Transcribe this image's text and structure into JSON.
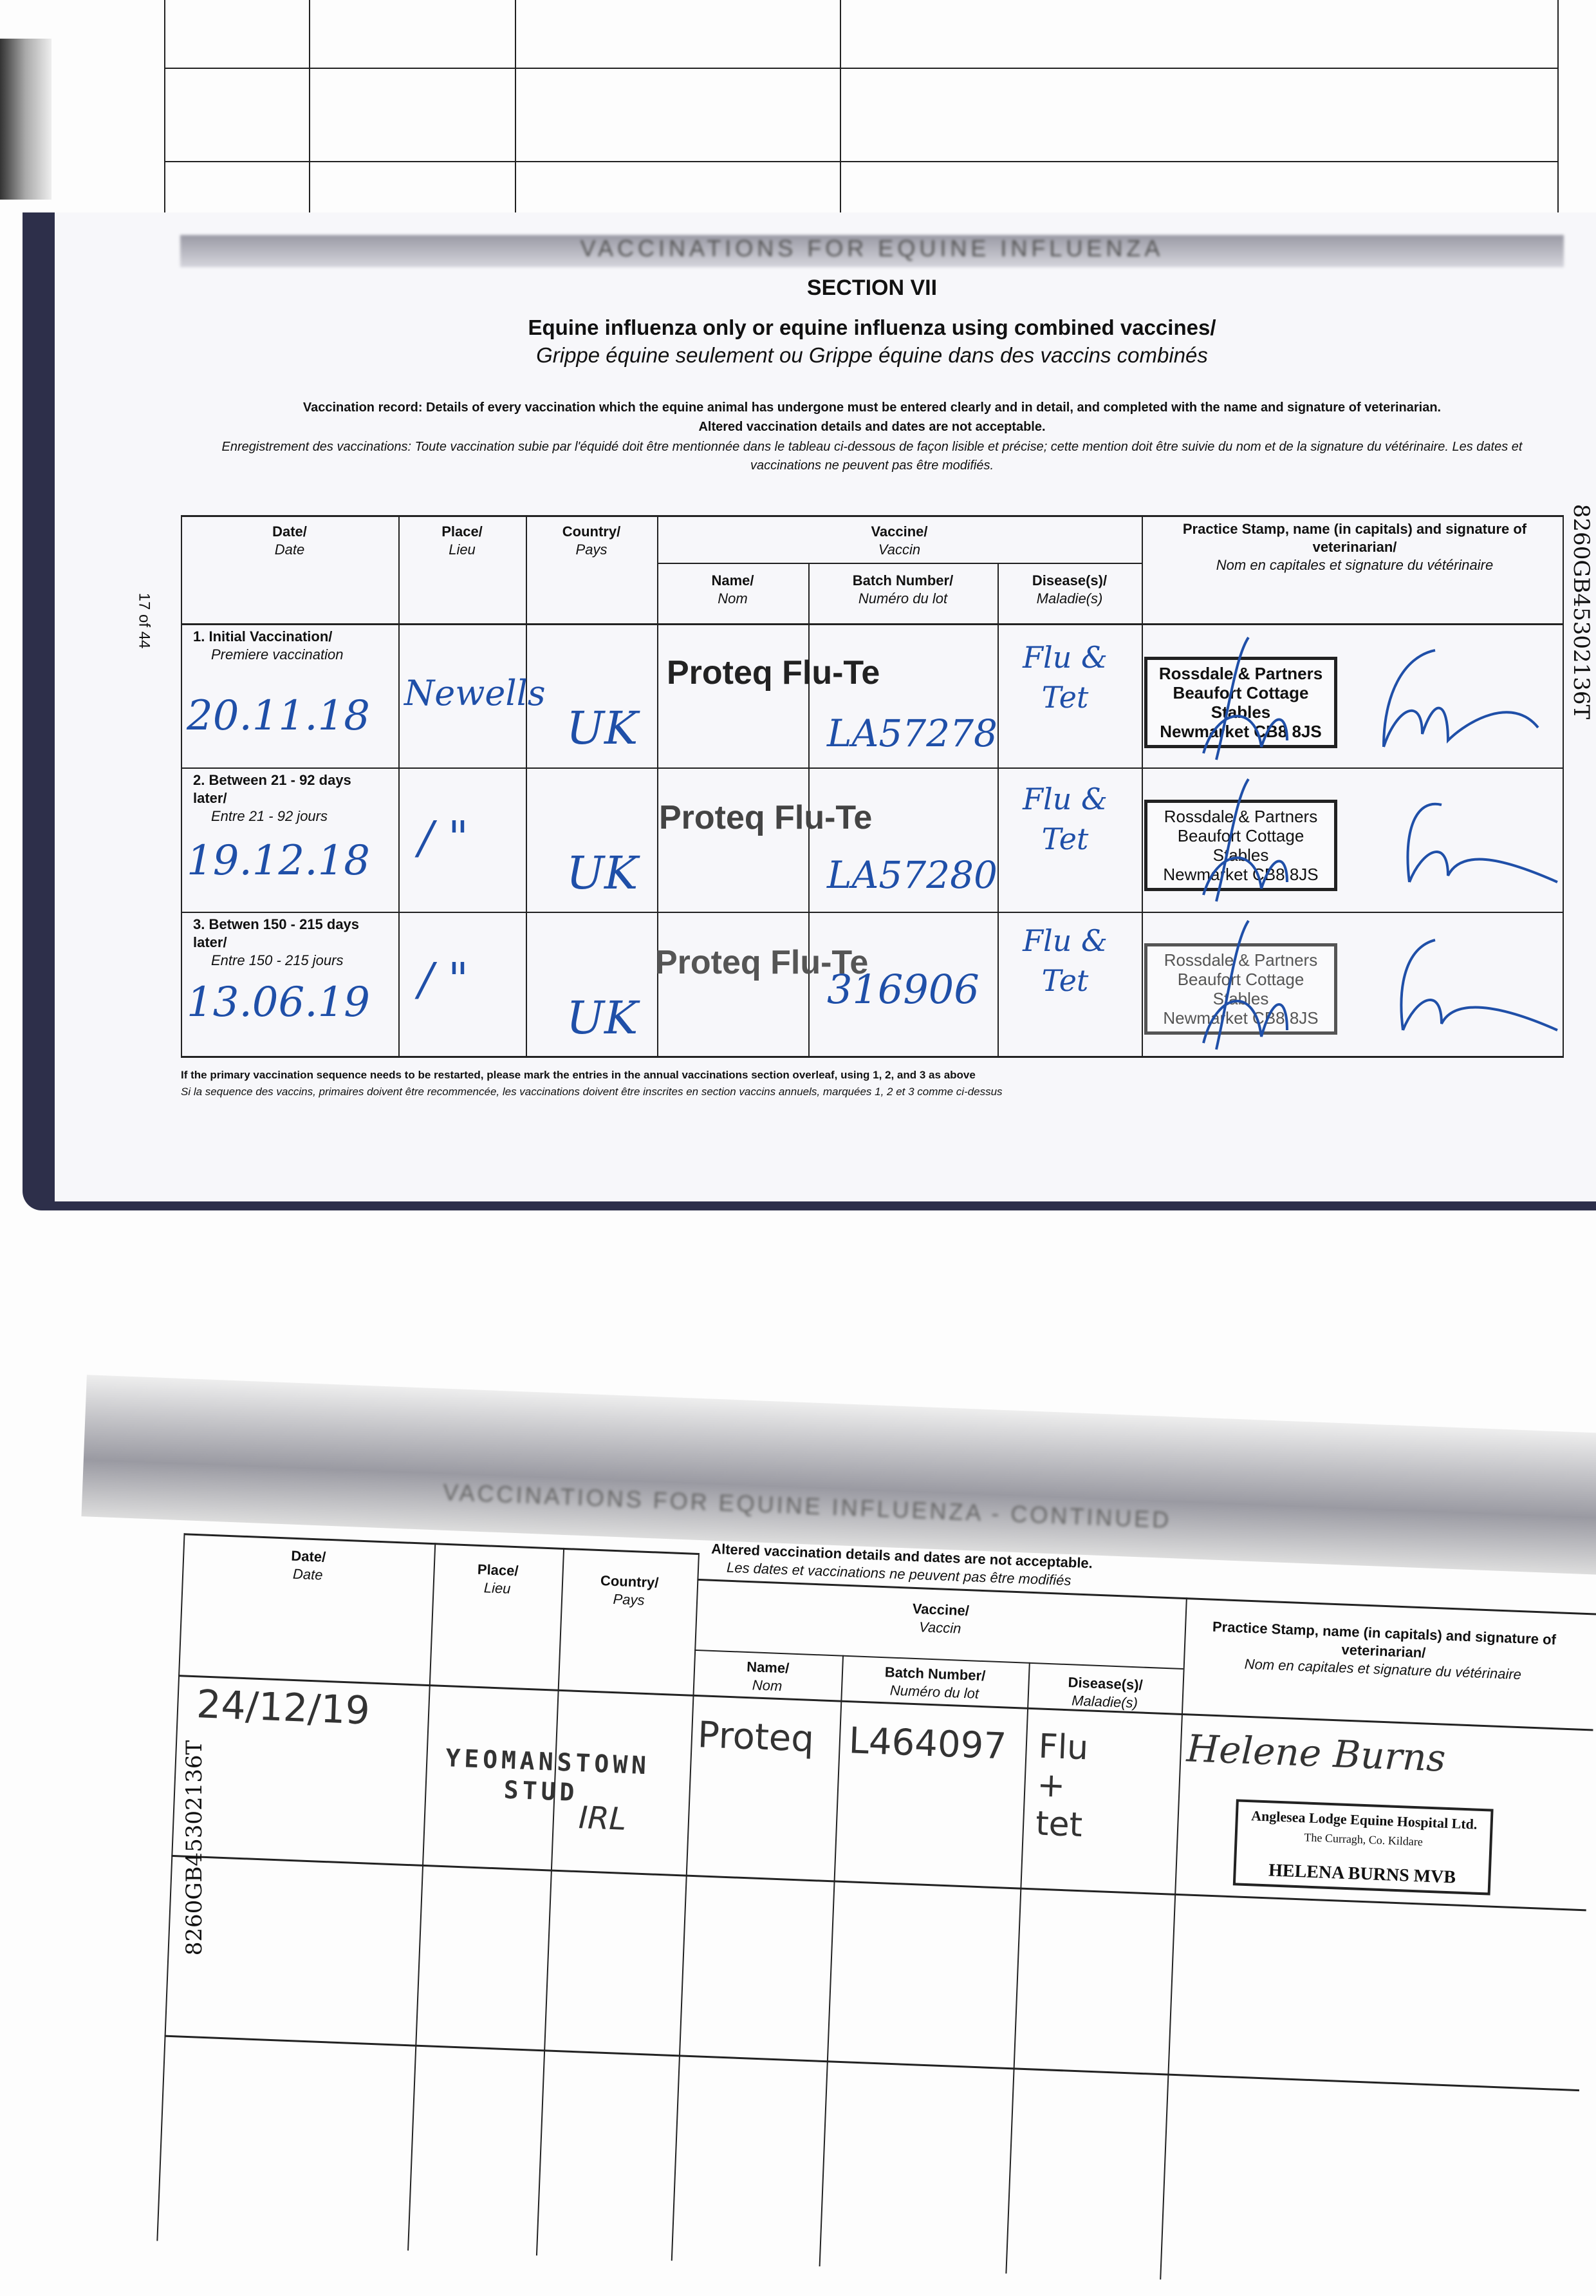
{
  "page_number": "17 of 44",
  "passport_id": "8260GB45302136T",
  "top_page": {
    "banner": "VACCINATIONS FOR EQUINE INFLUENZA",
    "section": "SECTION VII",
    "title_en": "Equine influenza only or equine influenza using combined vaccines/",
    "title_fr": "Grippe équine seulement ou Grippe équine dans des vaccins combinés",
    "note_en_1": "Vaccination record: Details of every vaccination which the equine animal has undergone must be entered clearly and in detail, and completed with the name and signature of veterinarian.",
    "note_en_2": "Altered vaccination details and dates are not acceptable.",
    "note_fr": "Enregistrement des vaccinations: Toute vaccination subie par l'équidé doit être mentionnée dans le tableau ci-dessous de façon lisible et précise; cette mention doit être suivie du nom et de la signature du vétérinaire. Les dates et vaccinations ne peuvent pas être modifiés.",
    "headers": {
      "date": "Date/",
      "date_fr": "Date",
      "place": "Place/",
      "place_fr": "Lieu",
      "country": "Country/",
      "country_fr": "Pays",
      "vaccine": "Vaccine/",
      "vaccine_fr": "Vaccin",
      "name": "Name/",
      "name_fr": "Nom",
      "batch": "Batch Number/",
      "batch_fr": "Numéro du lot",
      "disease": "Disease(s)/",
      "disease_fr": "Maladie(s)",
      "stamp": "Practice Stamp, name (in capitals) and signature of veterinarian/",
      "stamp_fr": "Nom en capitales et signature du vétérinaire"
    },
    "rows": [
      {
        "label": "1. Initial Vaccination/",
        "label_fr": "Premiere vaccination",
        "date": "20.11.18",
        "place": "Newells",
        "country": "UK",
        "name": "Proteq Flu-Te",
        "batch": "LA57278",
        "disease": "Flu & Tet",
        "stamp": [
          "Rossdale & Partners",
          "Beaufort Cottage Stables",
          "Newmarket CB8 8JS"
        ]
      },
      {
        "label": "2. Between 21 - 92 days later/",
        "label_fr": "Entre 21 - 92 jours",
        "date": "19.12.18",
        "place": "∕ \"",
        "country": "UK",
        "name": "Proteq Flu-Te",
        "batch": "LA57280",
        "disease": "Flu & Tet",
        "stamp": [
          "Rossdale & Partners",
          "Beaufort Cottage Stables",
          "Newmarket CB8 8JS"
        ]
      },
      {
        "label": "3. Betwen 150 - 215 days later/",
        "label_fr": "Entre 150 - 215 jours",
        "date": "13.06.19",
        "place": "∕ \"",
        "country": "UK",
        "name": "Proteq Flu-Te",
        "batch": "316906",
        "disease": "Flu & Tet",
        "stamp": [
          "Rossdale & Partners",
          "Beaufort Cottage Stables",
          "Newmarket CB8 8JS"
        ]
      }
    ],
    "footer_en": "If the primary vaccination sequence needs to be restarted, please mark the entries in the annual vaccinations section overleaf, using 1, 2, and 3 as above",
    "footer_fr": "Si la sequence des vaccins, primaires doivent être recommencée, les vaccinations doivent être inscrites en section vaccins annuels, marquées 1, 2 et 3 comme ci-dessus"
  },
  "bottom_page": {
    "banner": "VACCINATIONS FOR EQUINE INFLUENZA - CONTINUED",
    "note_en": "Altered vaccination details and dates are not acceptable.",
    "note_fr": "Les dates et vaccinations ne peuvent pas être modifiés",
    "rows": [
      {
        "date": "24/12/19",
        "place": "YEOMANSTOWN STUD",
        "country": "IRL",
        "name": "Proteq",
        "batch": "L464097",
        "disease": "Flu + tet",
        "signature": "Helene Burns",
        "stamp": [
          "Anglesea Lodge Equine Hospital Ltd.",
          "The Curragh, Co. Kildare",
          "HELENA BURNS MVB"
        ]
      }
    ]
  }
}
